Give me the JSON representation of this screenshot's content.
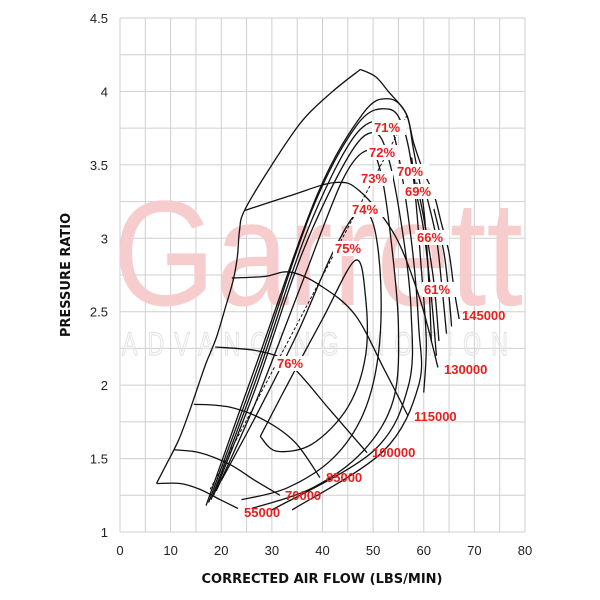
{
  "watermark": {
    "brand": "Garrett",
    "tagline": "ADVANCING MOTION"
  },
  "chart_data": {
    "type": "line",
    "title": "",
    "xlabel": "CORRECTED AIR FLOW (LBS/MIN)",
    "ylabel": "PRESSURE RATIO",
    "xlim": [
      0,
      80
    ],
    "ylim": [
      1,
      4.5
    ],
    "x_ticks": [
      "0",
      "10",
      "20",
      "30",
      "40",
      "50",
      "60",
      "70",
      "80"
    ],
    "y_ticks": [
      "1",
      "1.5",
      "2",
      "2.5",
      "3",
      "3.5",
      "4",
      "4.5"
    ],
    "grid": true,
    "colors": {
      "lines": "#111111",
      "labels": "#ee1c1c",
      "grid": "#cfcfcf"
    },
    "surge_line": [
      [
        7.2,
        1.33
      ],
      [
        9,
        1.45
      ],
      [
        11.5,
        1.62
      ],
      [
        13.5,
        1.8
      ],
      [
        15,
        1.95
      ],
      [
        17,
        2.15
      ],
      [
        19,
        2.32
      ],
      [
        21,
        2.55
      ],
      [
        22.4,
        2.72
      ],
      [
        23.2,
        2.88
      ],
      [
        23.6,
        3.05
      ],
      [
        24.6,
        3.19
      ],
      [
        30,
        3.5
      ],
      [
        36,
        3.8
      ],
      [
        42,
        4.0
      ],
      [
        47.5,
        4.15
      ]
    ],
    "speed_lines": [
      {
        "name": "55000",
        "points": [
          [
            7.3,
            1.33
          ],
          [
            11.9,
            1.33
          ],
          [
            15.8,
            1.29
          ],
          [
            19.8,
            1.22
          ],
          [
            23.3,
            1.16
          ]
        ]
      },
      {
        "name": "70000",
        "points": [
          [
            10.7,
            1.56
          ],
          [
            15.8,
            1.54
          ],
          [
            21.7,
            1.46
          ],
          [
            26.7,
            1.35
          ],
          [
            31.6,
            1.25
          ]
        ]
      },
      {
        "name": "85000",
        "points": [
          [
            14.6,
            1.87
          ],
          [
            21.7,
            1.85
          ],
          [
            28.6,
            1.76
          ],
          [
            34.6,
            1.61
          ],
          [
            39.5,
            1.37
          ]
        ]
      },
      {
        "name": "100000",
        "points": [
          [
            18.8,
            2.26
          ],
          [
            27.7,
            2.23
          ],
          [
            33.6,
            2.14
          ],
          [
            41.5,
            1.83
          ],
          [
            48.8,
            1.54
          ]
        ]
      },
      {
        "name": "115000",
        "points": [
          [
            22.1,
            2.73
          ],
          [
            28.6,
            2.74
          ],
          [
            33.6,
            2.77
          ],
          [
            39.5,
            2.68
          ],
          [
            46.4,
            2.48
          ],
          [
            52.3,
            2.1
          ],
          [
            56.9,
            1.79
          ]
        ]
      },
      {
        "name": "130000",
        "points": [
          [
            24.7,
            3.19
          ],
          [
            33.6,
            3.29
          ],
          [
            42.5,
            3.38
          ],
          [
            47.4,
            3.32
          ],
          [
            54.3,
            3.02
          ],
          [
            59.3,
            2.58
          ],
          [
            62.8,
            2.12
          ]
        ]
      },
      {
        "name": "145000",
        "points": [
          [
            47.5,
            4.15
          ],
          [
            50.5,
            4.1
          ],
          [
            53,
            4.0
          ],
          [
            56.5,
            3.85
          ],
          [
            58,
            3.65
          ],
          [
            60,
            3.45
          ],
          [
            62,
            3.3
          ],
          [
            63.5,
            3.1
          ],
          [
            65,
            2.9
          ],
          [
            66,
            2.65
          ],
          [
            67,
            2.45
          ]
        ]
      }
    ],
    "efficiency_islands": [
      {
        "name": "76%",
        "points": [
          [
            27.7,
            1.65
          ],
          [
            33,
            2.0
          ],
          [
            40,
            2.45
          ],
          [
            46.5,
            2.85
          ],
          [
            48.5,
            2.6
          ],
          [
            48.5,
            2.2
          ],
          [
            45,
            1.85
          ],
          [
            38,
            1.6
          ],
          [
            31,
            1.55
          ],
          [
            27.7,
            1.65
          ]
        ]
      },
      {
        "name": "76%",
        "points": [
          [
            20,
            1.35
          ],
          [
            27,
            1.8
          ],
          [
            35,
            2.35
          ],
          [
            42,
            2.9
          ],
          [
            47,
            3.18
          ],
          [
            50,
            3.1
          ],
          [
            51.5,
            2.7
          ],
          [
            51,
            2.2
          ],
          [
            48,
            1.8
          ],
          [
            42,
            1.5
          ],
          [
            33,
            1.3
          ],
          [
            24,
            1.22
          ]
        ]
      },
      {
        "name": "75%",
        "points": [
          [
            19,
            1.28
          ],
          [
            27,
            1.9
          ],
          [
            36,
            2.7
          ],
          [
            44,
            3.4
          ],
          [
            49,
            3.6
          ],
          [
            51.5,
            3.45
          ],
          [
            53.5,
            3.0
          ],
          [
            55,
            2.4
          ],
          [
            54,
            1.9
          ],
          [
            48,
            1.55
          ],
          [
            38,
            1.3
          ],
          [
            26,
            1.16
          ]
        ]
      },
      {
        "name": "74%",
        "points": [
          [
            18.5,
            1.25
          ],
          [
            27,
            2.0
          ],
          [
            36,
            2.9
          ],
          [
            45,
            3.55
          ],
          [
            50,
            3.72
          ],
          [
            53,
            3.55
          ],
          [
            56,
            3.0
          ],
          [
            57.5,
            2.5
          ],
          [
            57,
            2.0
          ],
          [
            50,
            1.55
          ],
          [
            30,
            1.15
          ]
        ]
      },
      {
        "name": "73%",
        "points": [
          [
            18,
            1.22
          ],
          [
            27,
            2.05
          ],
          [
            37,
            3.05
          ],
          [
            46,
            3.68
          ],
          [
            52,
            3.8
          ],
          [
            54.5,
            3.65
          ],
          [
            57.5,
            3.0
          ],
          [
            59,
            2.4
          ],
          [
            59,
            2.0
          ],
          [
            52,
            1.55
          ],
          [
            34,
            1.15
          ]
        ]
      },
      {
        "name": "72%",
        "points": [
          [
            17.5,
            1.2
          ],
          [
            27,
            2.1
          ],
          [
            38,
            3.2
          ],
          [
            47,
            3.78
          ],
          [
            53,
            3.88
          ],
          [
            56,
            3.75
          ],
          [
            58,
            3.4
          ],
          [
            59.5,
            2.8
          ],
          [
            60.5,
            2.3
          ],
          [
            60,
            1.95
          ]
        ]
      },
      {
        "name": "71%",
        "points": [
          [
            17,
            1.18
          ],
          [
            27,
            2.15
          ],
          [
            39,
            3.3
          ],
          [
            48,
            3.85
          ],
          [
            53,
            3.95
          ],
          [
            56.5,
            3.85
          ],
          [
            58,
            3.6
          ],
          [
            60,
            3.2
          ],
          [
            61,
            2.7
          ],
          [
            61.5,
            2.3
          ]
        ]
      },
      {
        "name": "70%",
        "points": [
          [
            57.6,
            3.55
          ],
          [
            58.6,
            3.3
          ],
          [
            60,
            3.05
          ],
          [
            61.5,
            2.6
          ],
          [
            62.5,
            2.2
          ]
        ]
      },
      {
        "name": "69%",
        "points": [
          [
            58.6,
            3.38
          ],
          [
            60.2,
            3.1
          ],
          [
            62,
            2.7
          ],
          [
            63,
            2.3
          ]
        ]
      },
      {
        "name": "66%",
        "points": [
          [
            60.5,
            3.3
          ],
          [
            62.5,
            3.0
          ],
          [
            63.5,
            2.7
          ],
          [
            64.5,
            2.35
          ]
        ]
      },
      {
        "name": "61%",
        "points": [
          [
            62,
            3.2
          ],
          [
            64,
            2.9
          ],
          [
            65,
            2.6
          ],
          [
            65.5,
            2.4
          ]
        ]
      }
    ],
    "peak_efficiency_line": [
      [
        17.8,
        1.29
      ],
      [
        56.9,
        3.85
      ]
    ]
  }
}
